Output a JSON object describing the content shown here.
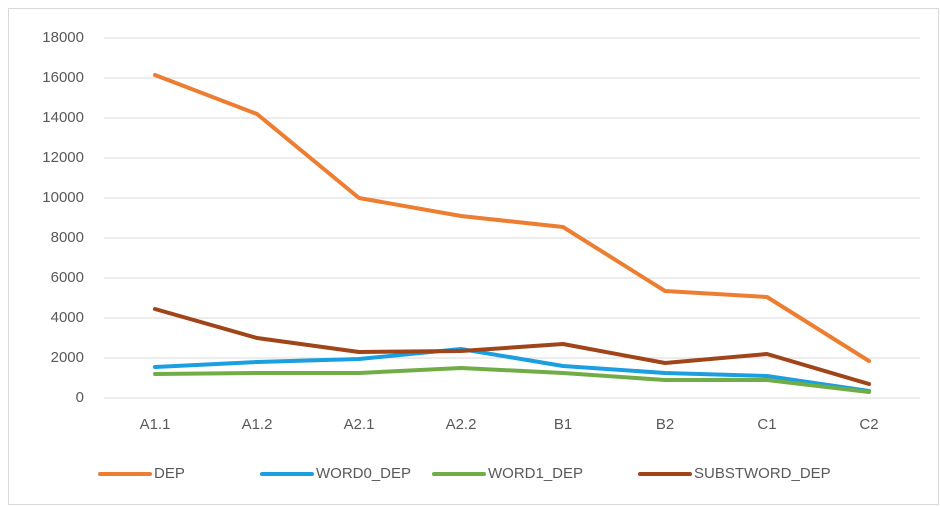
{
  "chart_data": {
    "type": "line",
    "categories": [
      "A1.1",
      "A1.2",
      "A2.1",
      "A2.2",
      "B1",
      "B2",
      "C1",
      "C2"
    ],
    "series": [
      {
        "name": "DEP",
        "color": "#ed7d31",
        "values": [
          16150,
          14200,
          10000,
          9100,
          8550,
          5350,
          5050,
          1850
        ]
      },
      {
        "name": "WORD0_DEP",
        "color": "#1b9fe0",
        "values": [
          1550,
          1800,
          1950,
          2450,
          1600,
          1250,
          1100,
          350
        ]
      },
      {
        "name": "WORD1_DEP",
        "color": "#70ad47",
        "values": [
          1200,
          1250,
          1250,
          1500,
          1250,
          900,
          900,
          300
        ]
      },
      {
        "name": "SUBSTWORD_DEP",
        "color": "#a0441a",
        "values": [
          4450,
          3000,
          2300,
          2350,
          2700,
          1750,
          2200,
          700
        ]
      }
    ],
    "ylim": [
      0,
      18000
    ],
    "yticks": [
      0,
      2000,
      4000,
      6000,
      8000,
      10000,
      12000,
      14000,
      16000,
      18000
    ],
    "grid": true,
    "legend": "bottom"
  }
}
